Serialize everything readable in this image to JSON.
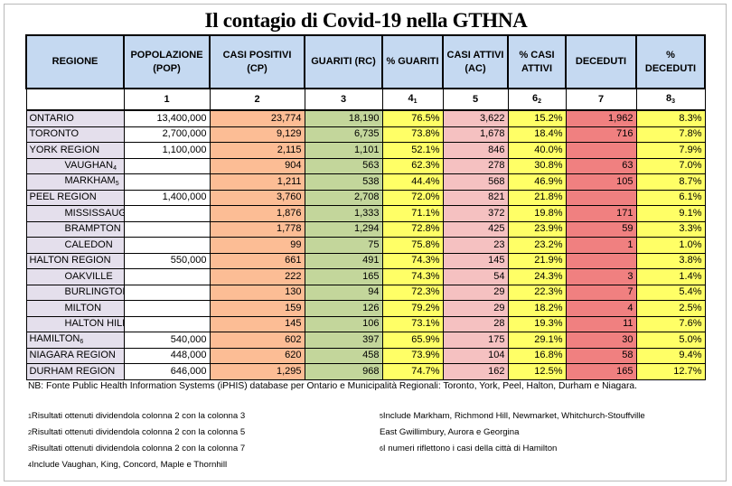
{
  "title": "Il contagio di Covid-19 nella GTHNA",
  "headers": [
    "REGIONE",
    "POPOLAZIONE (POP)",
    "CASI POSITIVI (CP)",
    "GUARITI (RC)",
    "% GUARITI",
    "CASI ATTIVI (AC)",
    "% CASI ATTIVI",
    "DECEDUTI",
    "% DECEDUTI"
  ],
  "col_numbers": [
    "",
    "1",
    "2",
    "3",
    "4",
    "5",
    "6",
    "7",
    "8"
  ],
  "col_number_subs": [
    "",
    "",
    "",
    "",
    "1",
    "",
    "2",
    "",
    "3"
  ],
  "rows": [
    {
      "name": "ONTARIO",
      "sub": "",
      "pop": "13,400,000",
      "cp": "23,774",
      "rc": "18,190",
      "pg": "76.5%",
      "ac": "3,622",
      "pa": "15.2%",
      "dec": "1,962",
      "pd": "8.3%"
    },
    {
      "name": "TORONTO",
      "sub": "",
      "pop": "2,700,000",
      "cp": "9,129",
      "rc": "6,735",
      "pg": "73.8%",
      "ac": "1,678",
      "pa": "18.4%",
      "dec": "716",
      "pd": "7.8%"
    },
    {
      "name": "YORK REGION",
      "sub": "",
      "pop": "1,100,000",
      "cp": "2,115",
      "rc": "1,101",
      "pg": "52.1%",
      "ac": "846",
      "pa": "40.0%",
      "dec": "",
      "pd": "7.9%"
    },
    {
      "name": "VAUGHAN",
      "sub": "4",
      "pop": "",
      "cp": "904",
      "rc": "563",
      "pg": "62.3%",
      "ac": "278",
      "pa": "30.8%",
      "dec": "63",
      "pd": "7.0%"
    },
    {
      "name": "MARKHAM",
      "sub": "5",
      "pop": "",
      "cp": "1,211",
      "rc": "538",
      "pg": "44.4%",
      "ac": "568",
      "pa": "46.9%",
      "dec": "105",
      "pd": "8.7%"
    },
    {
      "name": "PEEL REGION",
      "sub": "",
      "pop": "1,400,000",
      "cp": "3,760",
      "rc": "2,708",
      "pg": "72.0%",
      "ac": "821",
      "pa": "21.8%",
      "dec": "",
      "pd": "6.1%"
    },
    {
      "name": "MISSISSAUGA",
      "sub": "",
      "pop": "",
      "cp": "1,876",
      "rc": "1,333",
      "pg": "71.1%",
      "ac": "372",
      "pa": "19.8%",
      "dec": "171",
      "pd": "9.1%"
    },
    {
      "name": "BRAMPTON",
      "sub": "",
      "pop": "",
      "cp": "1,778",
      "rc": "1,294",
      "pg": "72.8%",
      "ac": "425",
      "pa": "23.9%",
      "dec": "59",
      "pd": "3.3%"
    },
    {
      "name": "CALEDON",
      "sub": "",
      "pop": "",
      "cp": "99",
      "rc": "75",
      "pg": "75.8%",
      "ac": "23",
      "pa": "23.2%",
      "dec": "1",
      "pd": "1.0%"
    },
    {
      "name": "HALTON REGION",
      "sub": "",
      "pop": "550,000",
      "cp": "661",
      "rc": "491",
      "pg": "74.3%",
      "ac": "145",
      "pa": "21.9%",
      "dec": "",
      "pd": "3.8%"
    },
    {
      "name": "OAKVILLE",
      "sub": "",
      "pop": "",
      "cp": "222",
      "rc": "165",
      "pg": "74.3%",
      "ac": "54",
      "pa": "24.3%",
      "dec": "3",
      "pd": "1.4%"
    },
    {
      "name": "BURLINGTON",
      "sub": "",
      "pop": "",
      "cp": "130",
      "rc": "94",
      "pg": "72.3%",
      "ac": "29",
      "pa": "22.3%",
      "dec": "7",
      "pd": "5.4%"
    },
    {
      "name": "MILTON",
      "sub": "",
      "pop": "",
      "cp": "159",
      "rc": "126",
      "pg": "79.2%",
      "ac": "29",
      "pa": "18.2%",
      "dec": "4",
      "pd": "2.5%"
    },
    {
      "name": "HALTON HILLS",
      "sub": "",
      "pop": "",
      "cp": "145",
      "rc": "106",
      "pg": "73.1%",
      "ac": "28",
      "pa": "19.3%",
      "dec": "11",
      "pd": "7.6%"
    },
    {
      "name": "HAMILTON",
      "sub": "6",
      "pop": "540,000",
      "cp": "602",
      "rc": "397",
      "pg": "65.9%",
      "ac": "175",
      "pa": "29.1%",
      "dec": "30",
      "pd": "5.0%"
    },
    {
      "name": "NIAGARA REGION",
      "sub": "",
      "pop": "448,000",
      "cp": "620",
      "rc": "458",
      "pg": "73.9%",
      "ac": "104",
      "pa": "16.8%",
      "dec": "58",
      "pd": "9.4%"
    },
    {
      "name": "DURHAM REGION",
      "sub": "",
      "pop": "646,000",
      "cp": "1,295",
      "rc": "968",
      "pg": "74.7%",
      "ac": "162",
      "pa": "12.5%",
      "dec": "165",
      "pd": "12.7%"
    }
  ],
  "note": "NB: Fonte Public Health Information Systems (iPHIS) database per Ontario e Municipalità Regionali: Toronto, York, Peel, Halton, Durham e Niagara.",
  "footnotes_left": [
    {
      "n": "1",
      "text": "Risultati ottenuti dividendola colonna 2 con la colonna 3"
    },
    {
      "n": "2",
      "text": "Risultati ottenuti dividendola colonna 2 con la colonna 5"
    },
    {
      "n": "3",
      "text": "Risultati ottenuti dividendola colonna 2 con la colonna 7"
    },
    {
      "n": "4",
      "text": "Include Vaughan, King, Concord, Maple e Thornhill"
    }
  ],
  "footnotes_right": [
    {
      "n": "5",
      "text": "Include Markham, Richmond Hill, Newmarket, Whitchurch-Stouffville"
    },
    {
      "n": "",
      "text": "East Gwillimbury, Aurora e Georgina"
    },
    {
      "n": "6",
      "text": "I numeri riflettono i casi della città di Hamilton"
    }
  ],
  "colors": {
    "header": "#c5d9f1",
    "region": "#e4dfec",
    "cp": "#fcbd95",
    "rc": "#c3d69b",
    "percent": "#ffff66",
    "ac": "#f5c1c1",
    "dec": "#f08080"
  }
}
